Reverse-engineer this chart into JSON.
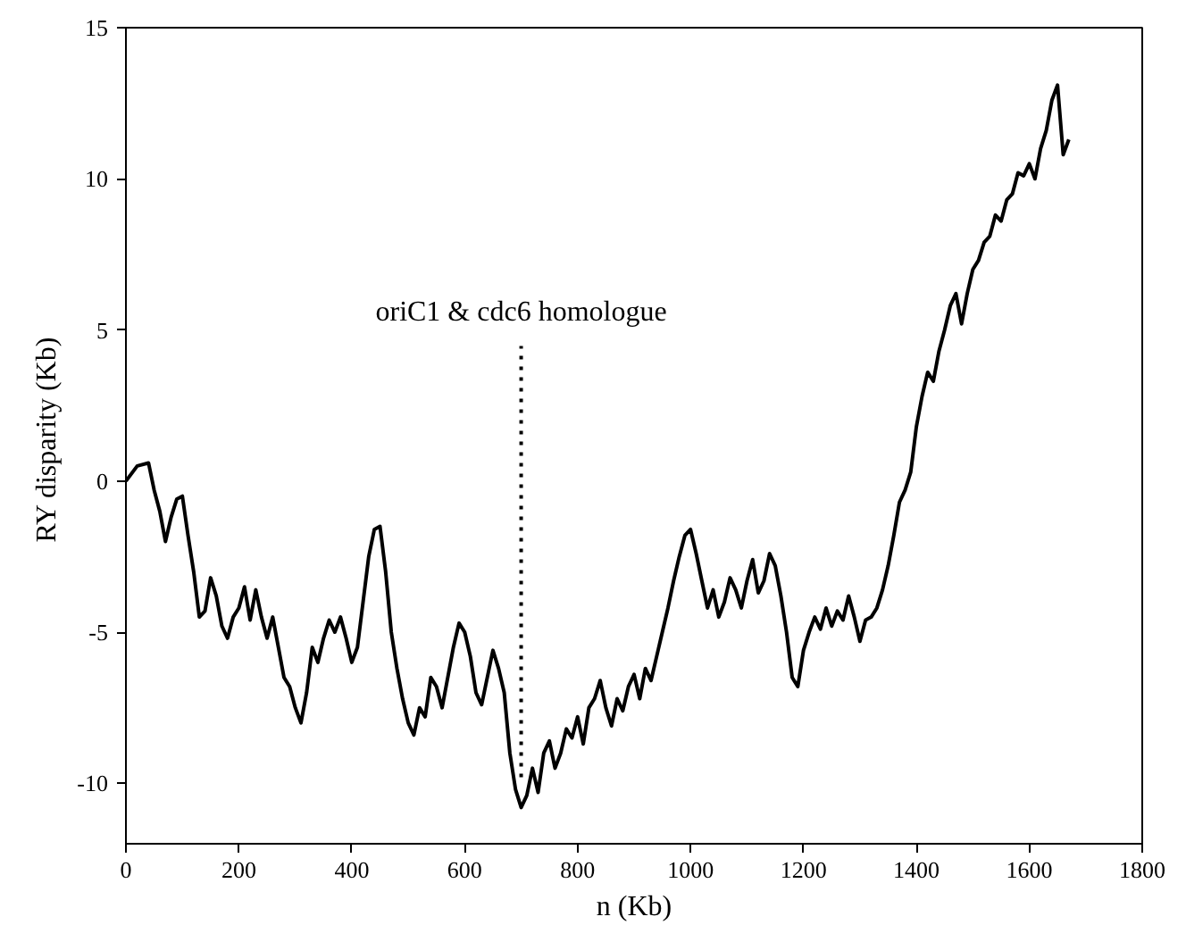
{
  "chart_data": {
    "type": "line",
    "xlabel": "n (Kb)",
    "ylabel": "RY disparity  (Kb)",
    "xlim": [
      0,
      1800
    ],
    "ylim": [
      -12,
      15
    ],
    "xticks": [
      0,
      200,
      400,
      600,
      800,
      1000,
      1200,
      1400,
      1600,
      1800
    ],
    "yticks": [
      -10,
      -5,
      0,
      5,
      10,
      15
    ],
    "grid": false,
    "marker": "none",
    "line_style": "solid",
    "ref_lines": [
      {
        "axis": "x",
        "value": 700,
        "label": "oriC1 & cdc6 homologue",
        "line_style": "dotted",
        "color": "#000000"
      }
    ],
    "series": [
      {
        "color": "#000000",
        "x": [
          0,
          20,
          40,
          50,
          60,
          70,
          80,
          90,
          100,
          110,
          120,
          130,
          140,
          150,
          160,
          170,
          180,
          190,
          200,
          210,
          220,
          230,
          240,
          250,
          260,
          270,
          280,
          290,
          300,
          310,
          320,
          330,
          340,
          350,
          360,
          370,
          380,
          390,
          400,
          410,
          420,
          430,
          440,
          450,
          460,
          470,
          480,
          490,
          500,
          510,
          520,
          530,
          540,
          550,
          560,
          570,
          580,
          590,
          600,
          610,
          620,
          630,
          640,
          650,
          660,
          670,
          680,
          690,
          700,
          710,
          720,
          730,
          740,
          750,
          760,
          770,
          780,
          790,
          800,
          810,
          820,
          830,
          840,
          850,
          860,
          870,
          880,
          890,
          900,
          910,
          920,
          930,
          940,
          950,
          960,
          970,
          980,
          990,
          1000,
          1010,
          1020,
          1030,
          1040,
          1050,
          1060,
          1070,
          1080,
          1090,
          1100,
          1110,
          1120,
          1130,
          1140,
          1150,
          1160,
          1170,
          1180,
          1190,
          1200,
          1210,
          1220,
          1230,
          1240,
          1250,
          1260,
          1270,
          1280,
          1290,
          1300,
          1310,
          1320,
          1330,
          1340,
          1350,
          1360,
          1370,
          1380,
          1390,
          1400,
          1410,
          1420,
          1430,
          1440,
          1450,
          1460,
          1470,
          1480,
          1490,
          1500,
          1510,
          1520,
          1530,
          1540,
          1550,
          1560,
          1570,
          1580,
          1590,
          1600,
          1610,
          1620,
          1630,
          1640,
          1650,
          1660,
          1670
        ],
        "values": [
          0,
          0.5,
          0.6,
          -0.3,
          -1,
          -2,
          -1.2,
          -0.6,
          -0.5,
          -1.8,
          -3,
          -4.5,
          -4.3,
          -3.2,
          -3.8,
          -4.8,
          -5.2,
          -4.5,
          -4.2,
          -3.5,
          -4.6,
          -3.6,
          -4.5,
          -5.2,
          -4.5,
          -5.5,
          -6.5,
          -6.8,
          -7.5,
          -8,
          -7,
          -5.5,
          -6,
          -5.2,
          -4.6,
          -5,
          -4.5,
          -5.2,
          -6,
          -5.5,
          -4,
          -2.5,
          -1.6,
          -1.5,
          -3,
          -5,
          -6.2,
          -7.2,
          -8,
          -8.4,
          -7.5,
          -7.8,
          -6.5,
          -6.8,
          -7.5,
          -6.5,
          -5.5,
          -4.7,
          -5,
          -5.8,
          -7,
          -7.4,
          -6.5,
          -5.6,
          -6.2,
          -7,
          -9,
          -10.2,
          -10.8,
          -10.4,
          -9.5,
          -10.3,
          -9,
          -8.6,
          -9.5,
          -9,
          -8.2,
          -8.5,
          -7.8,
          -8.7,
          -7.5,
          -7.2,
          -6.6,
          -7.5,
          -8.1,
          -7.2,
          -7.6,
          -6.8,
          -6.4,
          -7.2,
          -6.2,
          -6.6,
          -5.8,
          -5,
          -4.2,
          -3.3,
          -2.5,
          -1.8,
          -1.6,
          -2.4,
          -3.3,
          -4.2,
          -3.6,
          -4.5,
          -4,
          -3.2,
          -3.6,
          -4.2,
          -3.3,
          -2.6,
          -3.7,
          -3.3,
          -2.4,
          -2.8,
          -3.8,
          -5,
          -6.5,
          -6.8,
          -5.6,
          -5,
          -4.5,
          -4.9,
          -4.2,
          -4.8,
          -4.3,
          -4.6,
          -3.8,
          -4.5,
          -5.3,
          -4.6,
          -4.5,
          -4.2,
          -3.6,
          -2.8,
          -1.8,
          -0.7,
          -0.3,
          0.3,
          1.8,
          2.8,
          3.6,
          3.3,
          4.3,
          5,
          5.8,
          6.2,
          5.2,
          6.2,
          7,
          7.3,
          7.9,
          8.1,
          8.8,
          8.6,
          9.3,
          9.5,
          10.2,
          10.1,
          10.5,
          10,
          11,
          11.6,
          12.6,
          13.1,
          10.8,
          11.3
        ]
      }
    ]
  }
}
